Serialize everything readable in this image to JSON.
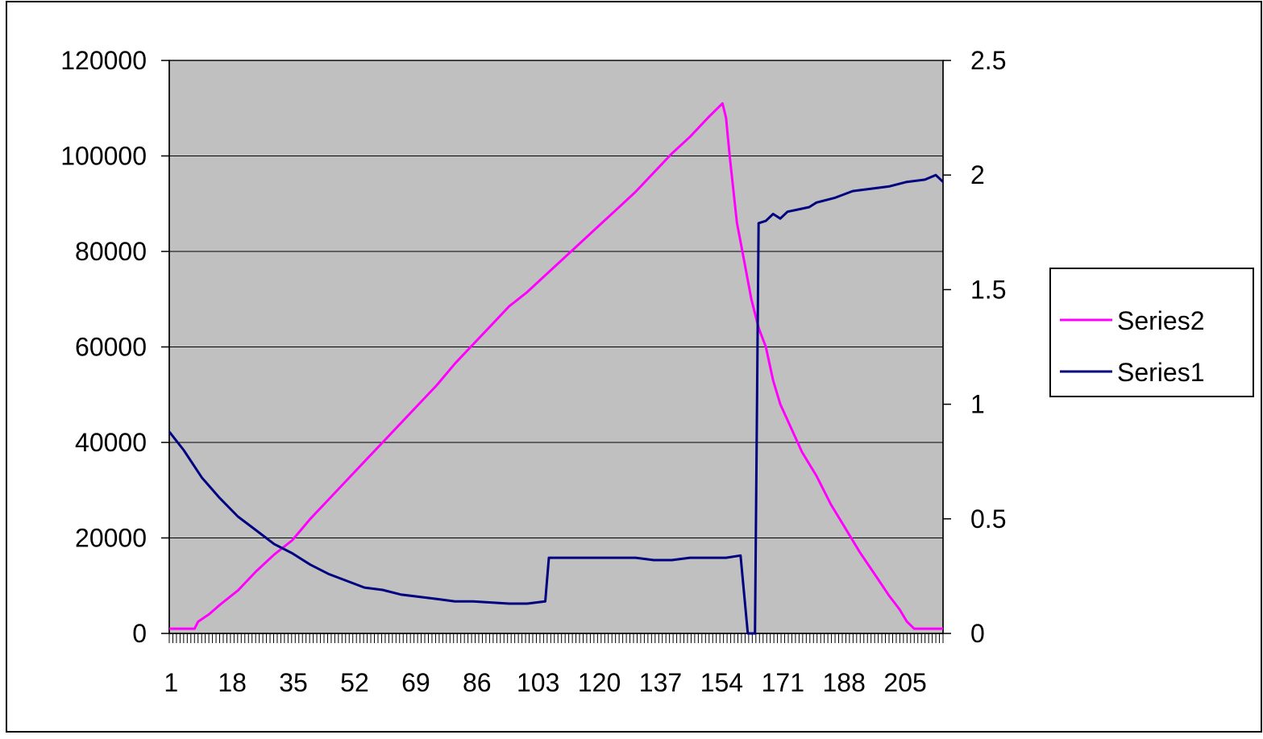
{
  "chart_data": {
    "type": "line",
    "title": "",
    "xlabel": "",
    "ylabel": "",
    "x_range": [
      1,
      215
    ],
    "x_tick_labels": [
      "1",
      "18",
      "35",
      "52",
      "69",
      "86",
      "103",
      "120",
      "137",
      "154",
      "171",
      "188",
      "205"
    ],
    "y_left": {
      "range": [
        0,
        120000
      ],
      "tick_labels": [
        "0",
        "20000",
        "40000",
        "60000",
        "80000",
        "100000",
        "120000"
      ]
    },
    "y_right": {
      "range": [
        0,
        2.5
      ],
      "tick_labels": [
        "0",
        "0.5",
        "1",
        "1.5",
        "2",
        "2.5"
      ]
    },
    "grid": "horizontal",
    "legend_placement": "right",
    "plot_background": "#c0c0c0",
    "series": [
      {
        "name": "Series2",
        "color": "#ff00ff",
        "axis": "left",
        "points": [
          [
            1,
            1000
          ],
          [
            8,
            1000
          ],
          [
            9,
            2500
          ],
          [
            12,
            4000
          ],
          [
            15,
            6000
          ],
          [
            20,
            9000
          ],
          [
            25,
            13000
          ],
          [
            30,
            16500
          ],
          [
            35,
            19500
          ],
          [
            40,
            24000
          ],
          [
            45,
            28000
          ],
          [
            50,
            32000
          ],
          [
            55,
            36000
          ],
          [
            60,
            40000
          ],
          [
            65,
            44000
          ],
          [
            70,
            48000
          ],
          [
            75,
            52000
          ],
          [
            80,
            56500
          ],
          [
            85,
            60500
          ],
          [
            90,
            64500
          ],
          [
            95,
            68500
          ],
          [
            100,
            71500
          ],
          [
            105,
            75000
          ],
          [
            110,
            78500
          ],
          [
            115,
            82000
          ],
          [
            120,
            85500
          ],
          [
            125,
            89000
          ],
          [
            130,
            92500
          ],
          [
            135,
            96500
          ],
          [
            140,
            100500
          ],
          [
            145,
            104000
          ],
          [
            150,
            108000
          ],
          [
            154,
            111000
          ],
          [
            155,
            108000
          ],
          [
            156,
            100000
          ],
          [
            158,
            86000
          ],
          [
            160,
            78000
          ],
          [
            162,
            70000
          ],
          [
            164,
            64000
          ],
          [
            166,
            60000
          ],
          [
            168,
            53000
          ],
          [
            170,
            48000
          ],
          [
            173,
            43000
          ],
          [
            176,
            38000
          ],
          [
            180,
            33000
          ],
          [
            184,
            27000
          ],
          [
            188,
            22000
          ],
          [
            192,
            17000
          ],
          [
            196,
            12500
          ],
          [
            200,
            8000
          ],
          [
            203,
            5000
          ],
          [
            205,
            2500
          ],
          [
            207,
            1000
          ],
          [
            215,
            1000
          ]
        ]
      },
      {
        "name": "Series1",
        "color": "#000080",
        "axis": "right",
        "points": [
          [
            1,
            0.88
          ],
          [
            5,
            0.8
          ],
          [
            10,
            0.68
          ],
          [
            15,
            0.59
          ],
          [
            20,
            0.51
          ],
          [
            25,
            0.45
          ],
          [
            30,
            0.39
          ],
          [
            35,
            0.35
          ],
          [
            40,
            0.3
          ],
          [
            45,
            0.26
          ],
          [
            50,
            0.23
          ],
          [
            55,
            0.2
          ],
          [
            60,
            0.19
          ],
          [
            65,
            0.17
          ],
          [
            70,
            0.16
          ],
          [
            75,
            0.15
          ],
          [
            80,
            0.14
          ],
          [
            85,
            0.14
          ],
          [
            90,
            0.135
          ],
          [
            95,
            0.13
          ],
          [
            100,
            0.13
          ],
          [
            105,
            0.14
          ],
          [
            106,
            0.33
          ],
          [
            110,
            0.33
          ],
          [
            120,
            0.33
          ],
          [
            130,
            0.33
          ],
          [
            135,
            0.32
          ],
          [
            140,
            0.32
          ],
          [
            145,
            0.33
          ],
          [
            150,
            0.33
          ],
          [
            155,
            0.33
          ],
          [
            159,
            0.34
          ],
          [
            161,
            0.0
          ],
          [
            162,
            0.0
          ],
          [
            163,
            0.0
          ],
          [
            164,
            1.79
          ],
          [
            166,
            1.8
          ],
          [
            168,
            1.83
          ],
          [
            170,
            1.81
          ],
          [
            172,
            1.84
          ],
          [
            175,
            1.85
          ],
          [
            178,
            1.86
          ],
          [
            180,
            1.88
          ],
          [
            185,
            1.9
          ],
          [
            190,
            1.93
          ],
          [
            195,
            1.94
          ],
          [
            200,
            1.95
          ],
          [
            205,
            1.97
          ],
          [
            210,
            1.98
          ],
          [
            213,
            2.0
          ],
          [
            215,
            1.97
          ]
        ]
      }
    ],
    "legend_entries": [
      "Series2",
      "Series1"
    ]
  }
}
